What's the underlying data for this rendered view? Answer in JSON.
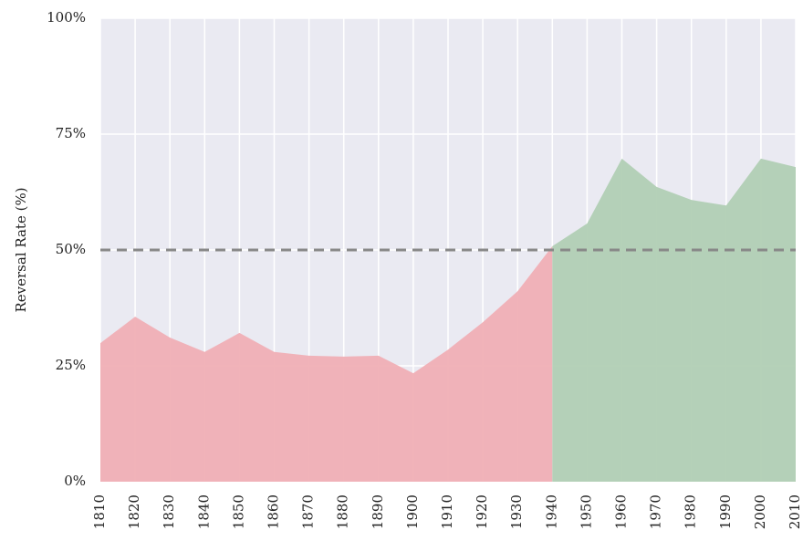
{
  "chart_data": {
    "type": "area",
    "y_label": "Reversal Rate (%)",
    "x": [
      1810,
      1820,
      1830,
      1840,
      1850,
      1860,
      1870,
      1880,
      1890,
      1900,
      1910,
      1920,
      1930,
      1940,
      1950,
      1960,
      1970,
      1980,
      1990,
      2000,
      2010
    ],
    "series": [
      {
        "color": "#f0afb5",
        "values": [
          29.9,
          35.6,
          31.1,
          28.0,
          32.1,
          28.0,
          27.2,
          27.0,
          27.2,
          23.4,
          28.5,
          34.4,
          41.1,
          50.8,
          null,
          null,
          null,
          null,
          null,
          null,
          null
        ]
      },
      {
        "color": "#b1cfb4",
        "values": [
          null,
          null,
          null,
          null,
          null,
          null,
          null,
          null,
          null,
          null,
          null,
          null,
          null,
          50.8,
          55.7,
          69.7,
          63.6,
          60.8,
          59.6,
          69.7,
          67.9
        ]
      }
    ],
    "xlim": [
      1810,
      2010
    ],
    "xticks": [
      1810,
      1820,
      1830,
      1840,
      1850,
      1860,
      1870,
      1880,
      1890,
      1900,
      1910,
      1920,
      1930,
      1940,
      1950,
      1960,
      1970,
      1980,
      1990,
      2000,
      2010
    ],
    "ylim": [
      0,
      100
    ],
    "yticks": [
      {
        "value": 0,
        "label": "0%"
      },
      {
        "value": 25,
        "label": "25%"
      },
      {
        "value": 50,
        "label": "50%"
      },
      {
        "value": 75,
        "label": "75%"
      },
      {
        "value": 100,
        "label": "100%"
      }
    ],
    "hline": 50,
    "hline_color": "#888888",
    "background": "#eaeaf2",
    "grid": true
  }
}
